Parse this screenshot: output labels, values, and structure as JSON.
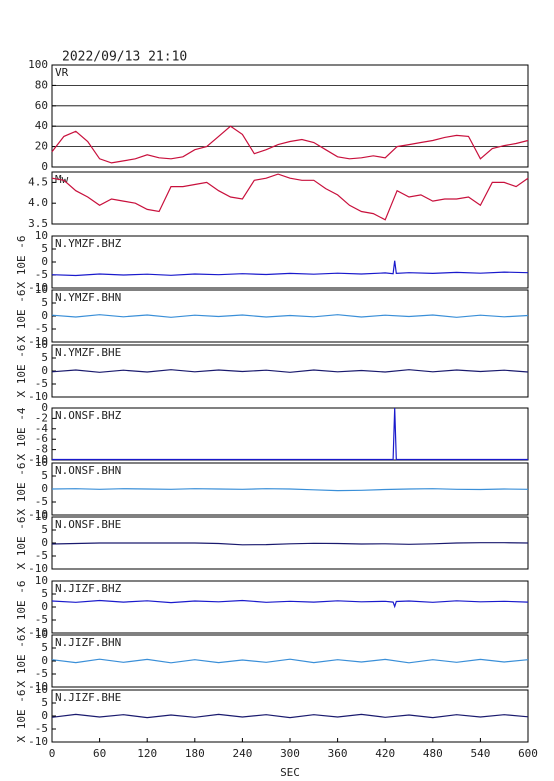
{
  "chart_data": [
    {
      "type": "line",
      "title": "2022/09/13 21:10",
      "label": "VR",
      "color": "#c8103c",
      "grid": true,
      "xlim": [
        0,
        600
      ],
      "ylim": [
        0,
        100
      ],
      "yticks": [
        0,
        20,
        40,
        60,
        80,
        100
      ],
      "x": [
        0,
        15,
        30,
        45,
        60,
        75,
        90,
        105,
        120,
        135,
        150,
        165,
        180,
        195,
        210,
        225,
        240,
        255,
        270,
        285,
        300,
        315,
        330,
        345,
        360,
        375,
        390,
        405,
        420,
        435,
        450,
        465,
        480,
        495,
        510,
        525,
        540,
        555,
        570,
        585,
        600
      ],
      "values": [
        15,
        30,
        35,
        25,
        8,
        4,
        6,
        8,
        12,
        9,
        8,
        10,
        17,
        20,
        30,
        40,
        32,
        13,
        17,
        22,
        25,
        27,
        24,
        17,
        10,
        8,
        9,
        11,
        9,
        20,
        22,
        24,
        26,
        29,
        31,
        30,
        8,
        18,
        21,
        23,
        26
      ]
    },
    {
      "type": "line",
      "label": "Mw",
      "color": "#c8103c",
      "xlim": [
        0,
        600
      ],
      "ylim": [
        3.5,
        4.75
      ],
      "yticks": [
        3.5,
        {
          "value": 4,
          "label": "4.0"
        },
        4.5
      ],
      "x": [
        0,
        15,
        30,
        45,
        60,
        75,
        90,
        105,
        120,
        135,
        150,
        165,
        180,
        195,
        210,
        225,
        240,
        255,
        270,
        285,
        300,
        315,
        330,
        345,
        360,
        375,
        390,
        405,
        420,
        435,
        450,
        465,
        480,
        495,
        510,
        525,
        540,
        555,
        570,
        585,
        600
      ],
      "values": [
        4.6,
        4.55,
        4.3,
        4.15,
        3.95,
        4.1,
        4.05,
        4.0,
        3.85,
        3.8,
        4.4,
        4.4,
        4.45,
        4.5,
        4.3,
        4.15,
        4.1,
        4.55,
        4.6,
        4.7,
        4.6,
        4.55,
        4.55,
        4.35,
        4.2,
        3.95,
        3.8,
        3.75,
        3.6,
        4.3,
        4.15,
        4.2,
        4.05,
        4.1,
        4.1,
        4.15,
        3.95,
        4.5,
        4.5,
        4.4,
        4.6
      ]
    },
    {
      "type": "line",
      "label": "N.YMZF.BHZ",
      "ylabel": "X 10E -6",
      "color": "#1a1acc",
      "xlim": [
        0,
        600
      ],
      "ylim": [
        -10,
        10
      ],
      "yticks": [
        -10,
        -5,
        0,
        5,
        10
      ],
      "x": [
        0,
        30,
        60,
        90,
        120,
        150,
        180,
        210,
        240,
        270,
        300,
        330,
        360,
        390,
        420,
        430,
        432,
        434,
        450,
        480,
        510,
        540,
        570,
        600
      ],
      "values": [
        -4.9,
        -5.2,
        -4.6,
        -5.0,
        -4.7,
        -5.1,
        -4.6,
        -4.9,
        -4.5,
        -4.8,
        -4.4,
        -4.7,
        -4.3,
        -4.6,
        -4.2,
        -4.5,
        0.5,
        -4.4,
        -4.1,
        -4.4,
        -4.0,
        -4.3,
        -3.9,
        -4.1
      ]
    },
    {
      "type": "line",
      "label": "N.YMZF.BHN",
      "ylabel": "X 10E -6",
      "color": "#3a8fd8",
      "xlim": [
        0,
        600
      ],
      "ylim": [
        -10,
        10
      ],
      "yticks": [
        -10,
        -5,
        0,
        5,
        10
      ],
      "x": [
        0,
        30,
        60,
        90,
        120,
        150,
        180,
        210,
        240,
        270,
        300,
        330,
        360,
        390,
        420,
        450,
        480,
        510,
        540,
        570,
        600
      ],
      "values": [
        0.3,
        -0.4,
        0.5,
        -0.3,
        0.4,
        -0.5,
        0.3,
        -0.2,
        0.4,
        -0.4,
        0.2,
        -0.3,
        0.5,
        -0.4,
        0.3,
        -0.2,
        0.4,
        -0.5,
        0.3,
        -0.3,
        0.2
      ]
    },
    {
      "type": "line",
      "label": "N.YMZF.BHE",
      "ylabel": "X 10E -6",
      "color": "#1a1a6e",
      "xlim": [
        0,
        600
      ],
      "ylim": [
        -10,
        10
      ],
      "yticks": [
        -10,
        -5,
        0,
        5,
        10
      ],
      "x": [
        0,
        30,
        60,
        90,
        120,
        150,
        180,
        210,
        240,
        270,
        300,
        330,
        360,
        390,
        420,
        450,
        480,
        510,
        540,
        570,
        600
      ],
      "values": [
        -0.3,
        0.4,
        -0.5,
        0.3,
        -0.4,
        0.5,
        -0.3,
        0.4,
        -0.2,
        0.3,
        -0.5,
        0.4,
        -0.3,
        0.2,
        -0.4,
        0.5,
        -0.3,
        0.4,
        -0.2,
        0.3,
        -0.4
      ]
    },
    {
      "type": "line",
      "label": "N.ONSF.BHZ",
      "ylabel": "X 10E -4",
      "color": "#1a1acc",
      "xlim": [
        0,
        600
      ],
      "ylim": [
        -10,
        0
      ],
      "yticks": [
        -10,
        -8,
        -6,
        -4,
        -2,
        0
      ],
      "x": [
        0,
        60,
        120,
        180,
        240,
        300,
        360,
        420,
        430,
        432,
        434,
        480,
        540,
        600
      ],
      "values": [
        -9.9,
        -9.9,
        -9.9,
        -9.9,
        -9.9,
        -9.9,
        -9.9,
        -9.9,
        -9.9,
        0,
        -9.9,
        -9.9,
        -9.9,
        -9.9
      ]
    },
    {
      "type": "line",
      "label": "N.ONSF.BHN",
      "ylabel": "X 10E -6",
      "color": "#3a8fd8",
      "xlim": [
        0,
        600
      ],
      "ylim": [
        -10,
        10
      ],
      "yticks": [
        -10,
        -5,
        0,
        5,
        10
      ],
      "x": [
        0,
        30,
        60,
        90,
        120,
        150,
        180,
        210,
        240,
        270,
        300,
        330,
        360,
        390,
        420,
        450,
        480,
        510,
        540,
        570,
        600
      ],
      "values": [
        0,
        0.1,
        -0.1,
        0.1,
        0,
        -0.1,
        0.1,
        0,
        -0.1,
        0.1,
        0,
        -0.3,
        -0.6,
        -0.5,
        -0.2,
        0,
        0.1,
        -0.1,
        -0.2,
        0,
        -0.1
      ]
    },
    {
      "type": "line",
      "label": "N.ONSF.BHE",
      "ylabel": "X 10E -6",
      "color": "#1a1a6e",
      "xlim": [
        0,
        600
      ],
      "ylim": [
        -10,
        10
      ],
      "yticks": [
        -10,
        -5,
        0,
        5,
        10
      ],
      "x": [
        0,
        30,
        60,
        90,
        120,
        150,
        180,
        210,
        240,
        270,
        300,
        330,
        360,
        390,
        420,
        450,
        480,
        510,
        540,
        570,
        600
      ],
      "values": [
        -0.4,
        -0.2,
        0,
        0,
        0,
        0,
        0,
        -0.2,
        -0.7,
        -0.6,
        -0.3,
        -0.1,
        -0.2,
        -0.4,
        -0.3,
        -0.5,
        -0.3,
        0,
        0.1,
        0.1,
        0
      ]
    },
    {
      "type": "line",
      "label": "N.JIZF.BHZ",
      "ylabel": "X 10E -6",
      "color": "#1a1acc",
      "xlim": [
        0,
        600
      ],
      "ylim": [
        -10,
        10
      ],
      "yticks": [
        -10,
        -5,
        0,
        5,
        10
      ],
      "x": [
        0,
        30,
        60,
        90,
        120,
        150,
        180,
        210,
        240,
        270,
        300,
        330,
        360,
        390,
        420,
        430,
        432,
        434,
        450,
        480,
        510,
        540,
        570,
        600
      ],
      "values": [
        2.3,
        1.8,
        2.5,
        1.9,
        2.4,
        1.7,
        2.3,
        2.0,
        2.5,
        1.8,
        2.2,
        1.9,
        2.4,
        2.0,
        2.2,
        1.9,
        0.2,
        2.1,
        2.3,
        1.8,
        2.4,
        2.0,
        2.2,
        1.9
      ]
    },
    {
      "type": "line",
      "label": "N.JIZF.BHN",
      "ylabel": "X 10E -6",
      "color": "#3a8fd8",
      "xlim": [
        0,
        600
      ],
      "ylim": [
        -10,
        10
      ],
      "yticks": [
        -10,
        -5,
        0,
        5,
        10
      ],
      "x": [
        0,
        30,
        60,
        90,
        120,
        150,
        180,
        210,
        240,
        270,
        300,
        330,
        360,
        390,
        420,
        450,
        480,
        510,
        540,
        570,
        600
      ],
      "values": [
        0.5,
        -0.6,
        0.7,
        -0.5,
        0.6,
        -0.7,
        0.5,
        -0.6,
        0.4,
        -0.5,
        0.7,
        -0.6,
        0.5,
        -0.4,
        0.6,
        -0.7,
        0.5,
        -0.5,
        0.6,
        -0.4,
        0.5
      ]
    },
    {
      "type": "line",
      "label": "N.JIZF.BHE",
      "ylabel": "X 10E -6",
      "color": "#1a1a6e",
      "xlabel": "SEC",
      "xlim": [
        0,
        600
      ],
      "ylim": [
        -10,
        10
      ],
      "yticks": [
        -10,
        -5,
        0,
        5,
        10
      ],
      "xticks": [
        0,
        60,
        120,
        180,
        240,
        300,
        360,
        420,
        480,
        540,
        600
      ],
      "x": [
        0,
        30,
        60,
        90,
        120,
        150,
        180,
        210,
        240,
        270,
        300,
        330,
        360,
        390,
        420,
        450,
        480,
        510,
        540,
        570,
        600
      ],
      "values": [
        -0.5,
        0.6,
        -0.4,
        0.5,
        -0.6,
        0.4,
        -0.5,
        0.6,
        -0.4,
        0.5,
        -0.6,
        0.5,
        -0.4,
        0.6,
        -0.5,
        0.4,
        -0.6,
        0.5,
        -0.4,
        0.5,
        -0.3
      ]
    }
  ]
}
